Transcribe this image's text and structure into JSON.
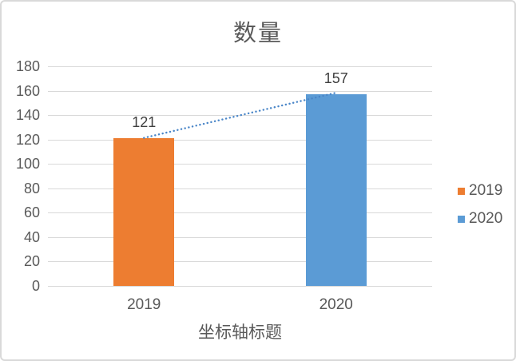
{
  "window": {
    "background": "#ffffff",
    "border_color": "#d9d9d9"
  },
  "chart_data": {
    "type": "bar",
    "title": "数量",
    "xlabel": "坐标轴标题",
    "ylabel": "",
    "categories": [
      "2019",
      "2020"
    ],
    "series": [
      {
        "name": "2019",
        "color": "#ed7d31",
        "value": 121
      },
      {
        "name": "2020",
        "color": "#5b9bd5",
        "value": 157
      }
    ],
    "data_labels": [
      "121",
      "157"
    ],
    "yticks": [
      0,
      20,
      40,
      60,
      80,
      100,
      120,
      140,
      160,
      180
    ],
    "ylim": [
      0,
      180
    ],
    "grid": true,
    "legend_position": "right",
    "legend": [
      {
        "label": "2019",
        "color": "#ed7d31"
      },
      {
        "label": "2020",
        "color": "#5b9bd5"
      }
    ],
    "trendline": {
      "style": "dotted",
      "color": "#4a86c8",
      "from": {
        "category": "2019",
        "value": 121
      },
      "to": {
        "category": "2020",
        "value": 157
      }
    }
  },
  "colors": {
    "grid": "#d9d9d9",
    "axis_text": "#595959",
    "title_text": "#595959",
    "data_label_text": "#3f3f3f"
  }
}
